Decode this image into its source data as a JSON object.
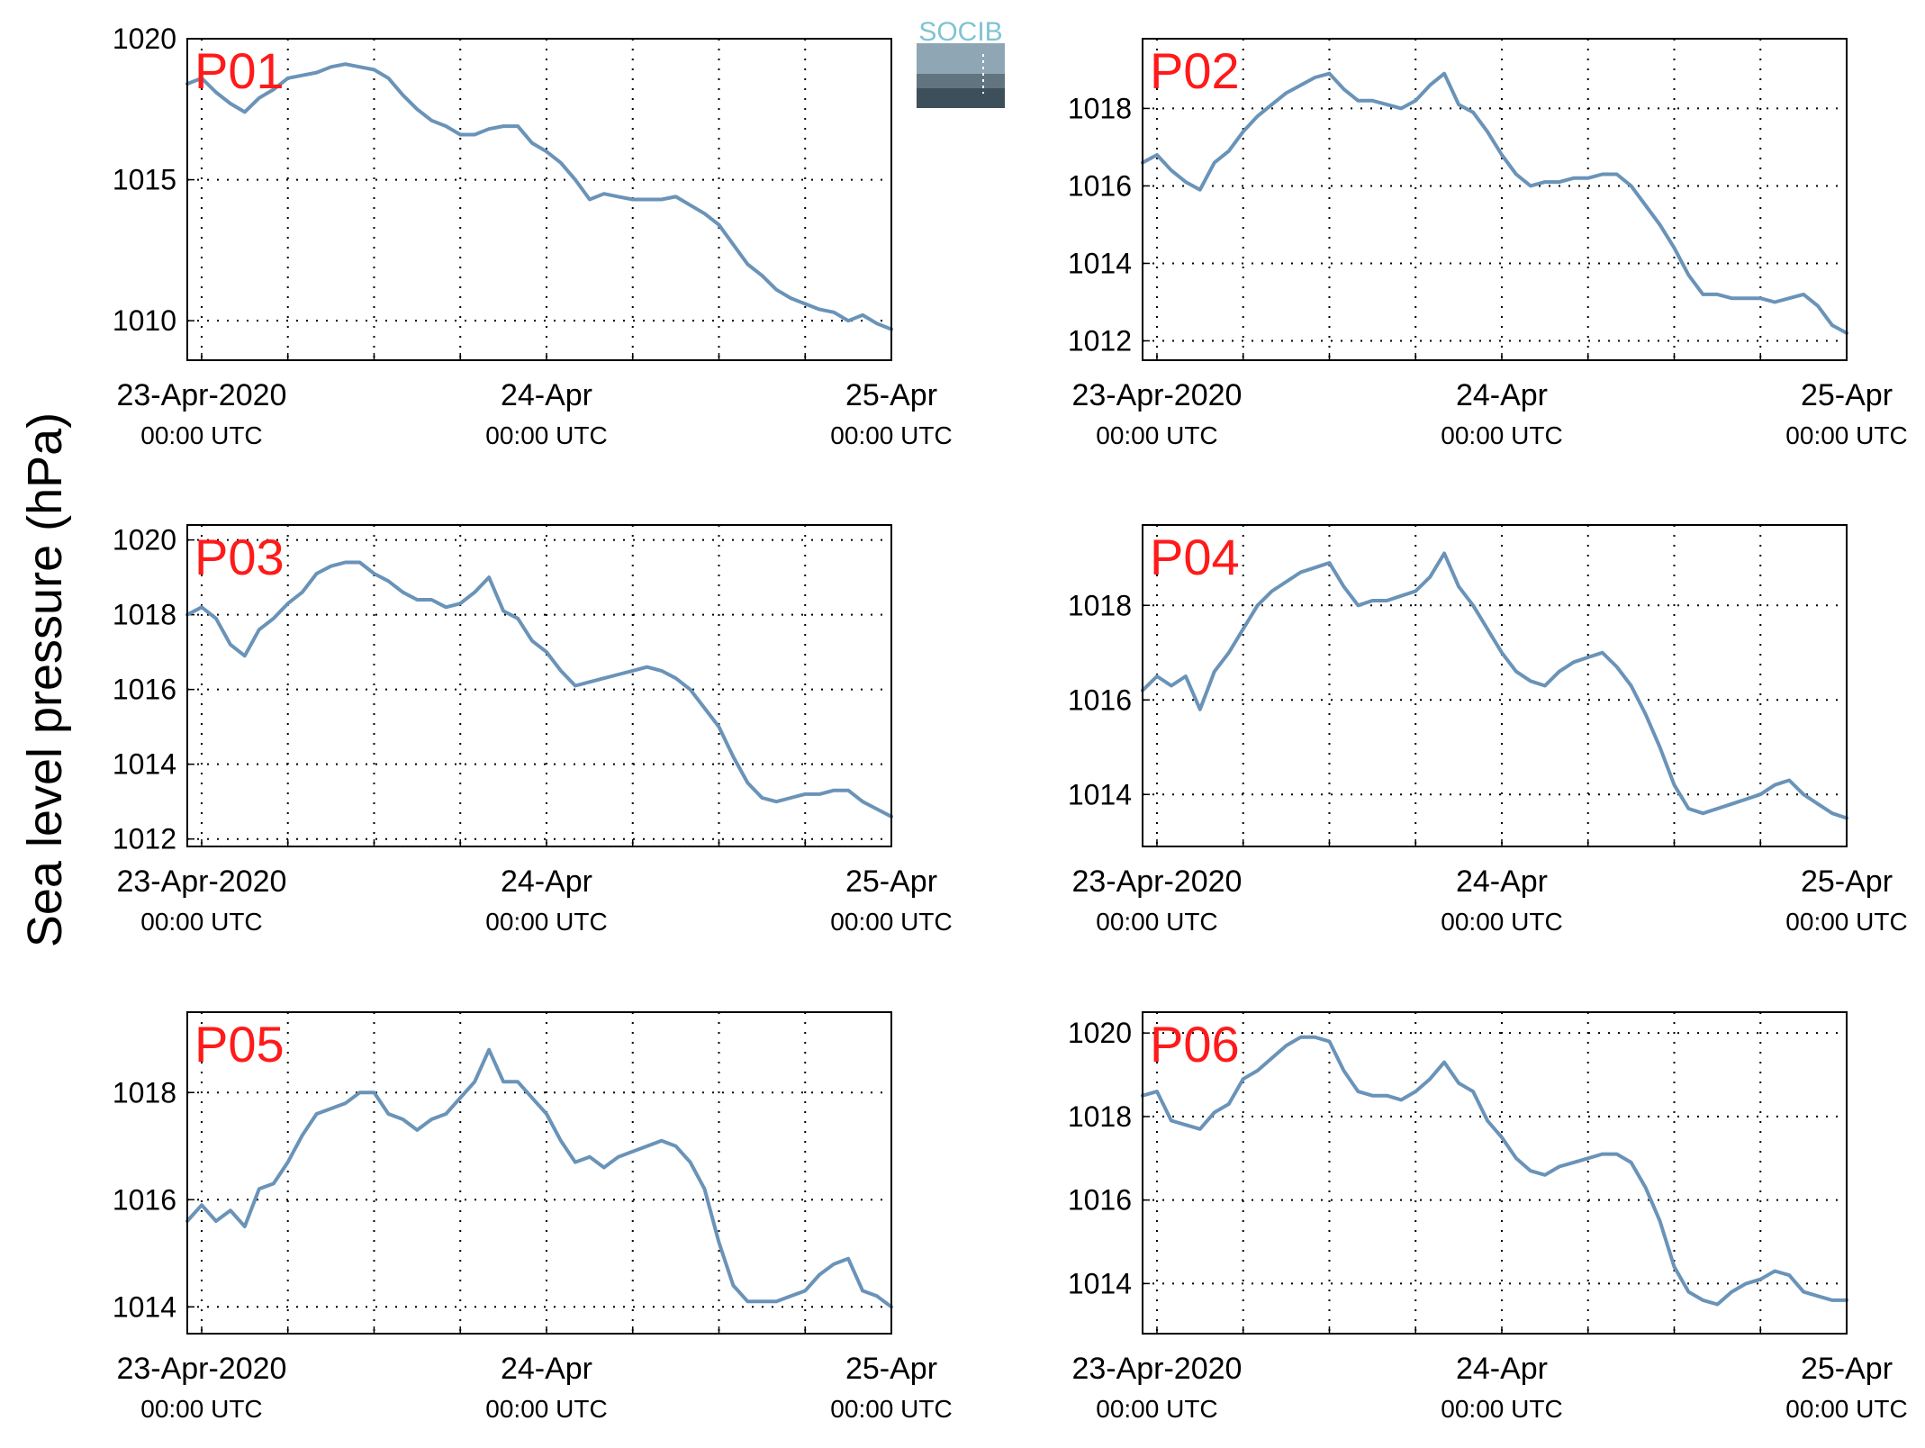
{
  "figure": {
    "ylabel": "Sea level pressure (hPa)",
    "logo_text": "SOCIB",
    "line_color": "#6a93b8",
    "panel_label_color": "#ff1a1a",
    "xticks": [
      {
        "x": 0,
        "line1": "23-Apr-2020",
        "line2": "00:00 UTC"
      },
      {
        "x": 24,
        "line1": "24-Apr",
        "line2": "00:00 UTC"
      },
      {
        "x": 48,
        "line1": "25-Apr",
        "line2": "00:00 UTC"
      }
    ]
  },
  "chart_data": [
    {
      "type": "line",
      "label": "P01",
      "xlim": [
        -1,
        48
      ],
      "ylim": [
        1008.6,
        1020
      ],
      "yticks": [
        1010,
        1015,
        1020
      ],
      "x": [
        -1,
        0,
        1,
        2,
        3,
        4,
        5,
        6,
        7,
        8,
        9,
        10,
        11,
        12,
        13,
        14,
        15,
        16,
        17,
        18,
        19,
        20,
        21,
        22,
        23,
        24,
        25,
        26,
        27,
        28,
        29,
        30,
        31,
        32,
        33,
        34,
        35,
        36,
        37,
        38,
        39,
        40,
        41,
        42,
        43,
        44,
        45,
        46,
        47,
        48
      ],
      "values": [
        1018.4,
        1018.6,
        1018.1,
        1017.7,
        1017.4,
        1017.9,
        1018.2,
        1018.6,
        1018.7,
        1018.8,
        1019.0,
        1019.1,
        1019.0,
        1018.9,
        1018.6,
        1018.0,
        1017.5,
        1017.1,
        1016.9,
        1016.6,
        1016.6,
        1016.8,
        1016.9,
        1016.9,
        1016.3,
        1016.0,
        1015.6,
        1015.0,
        1014.3,
        1014.5,
        1014.4,
        1014.3,
        1014.3,
        1014.3,
        1014.4,
        1014.1,
        1013.8,
        1013.4,
        1012.7,
        1012.0,
        1011.6,
        1011.1,
        1010.8,
        1010.6,
        1010.4,
        1010.3,
        1010.0,
        1010.2,
        1009.9,
        1009.7
      ]
    },
    {
      "type": "line",
      "label": "P02",
      "xlim": [
        -1,
        48
      ],
      "ylim": [
        1011.5,
        1019.8
      ],
      "yticks": [
        1012,
        1014,
        1016,
        1018
      ],
      "x": [
        -1,
        0,
        1,
        2,
        3,
        4,
        5,
        6,
        7,
        8,
        9,
        10,
        11,
        12,
        13,
        14,
        15,
        16,
        17,
        18,
        19,
        20,
        21,
        22,
        23,
        24,
        25,
        26,
        27,
        28,
        29,
        30,
        31,
        32,
        33,
        34,
        35,
        36,
        37,
        38,
        39,
        40,
        41,
        42,
        43,
        44,
        45,
        46,
        47,
        48
      ],
      "values": [
        1016.6,
        1016.8,
        1016.4,
        1016.1,
        1015.9,
        1016.6,
        1016.9,
        1017.4,
        1017.8,
        1018.1,
        1018.4,
        1018.6,
        1018.8,
        1018.9,
        1018.5,
        1018.2,
        1018.2,
        1018.1,
        1018.0,
        1018.2,
        1018.6,
        1018.9,
        1018.1,
        1017.9,
        1017.4,
        1016.8,
        1016.3,
        1016.0,
        1016.1,
        1016.1,
        1016.2,
        1016.2,
        1016.3,
        1016.3,
        1016.0,
        1015.5,
        1015.0,
        1014.4,
        1013.7,
        1013.2,
        1013.2,
        1013.1,
        1013.1,
        1013.1,
        1013.0,
        1013.1,
        1013.2,
        1012.9,
        1012.4,
        1012.2
      ]
    },
    {
      "type": "line",
      "label": "P03",
      "xlim": [
        -1,
        48
      ],
      "ylim": [
        1011.8,
        1020.4
      ],
      "yticks": [
        1012,
        1014,
        1016,
        1018,
        1020
      ],
      "x": [
        -1,
        0,
        1,
        2,
        3,
        4,
        5,
        6,
        7,
        8,
        9,
        10,
        11,
        12,
        13,
        14,
        15,
        16,
        17,
        18,
        19,
        20,
        21,
        22,
        23,
        24,
        25,
        26,
        27,
        28,
        29,
        30,
        31,
        32,
        33,
        34,
        35,
        36,
        37,
        38,
        39,
        40,
        41,
        42,
        43,
        44,
        45,
        46,
        47,
        48
      ],
      "values": [
        1018.0,
        1018.2,
        1017.9,
        1017.2,
        1016.9,
        1017.6,
        1017.9,
        1018.3,
        1018.6,
        1019.1,
        1019.3,
        1019.4,
        1019.4,
        1019.1,
        1018.9,
        1018.6,
        1018.4,
        1018.4,
        1018.2,
        1018.3,
        1018.6,
        1019.0,
        1018.1,
        1017.9,
        1017.3,
        1017.0,
        1016.5,
        1016.1,
        1016.2,
        1016.3,
        1016.4,
        1016.5,
        1016.6,
        1016.5,
        1016.3,
        1016.0,
        1015.5,
        1015.0,
        1014.2,
        1013.5,
        1013.1,
        1013.0,
        1013.1,
        1013.2,
        1013.2,
        1013.3,
        1013.3,
        1013.0,
        1012.8,
        1012.6
      ]
    },
    {
      "type": "line",
      "label": "P04",
      "xlim": [
        -1,
        48
      ],
      "ylim": [
        1012.9,
        1019.7
      ],
      "yticks": [
        1014,
        1016,
        1018
      ],
      "x": [
        -1,
        0,
        1,
        2,
        3,
        4,
        5,
        6,
        7,
        8,
        9,
        10,
        11,
        12,
        13,
        14,
        15,
        16,
        17,
        18,
        19,
        20,
        21,
        22,
        23,
        24,
        25,
        26,
        27,
        28,
        29,
        30,
        31,
        32,
        33,
        34,
        35,
        36,
        37,
        38,
        39,
        40,
        41,
        42,
        43,
        44,
        45,
        46,
        47,
        48
      ],
      "values": [
        1016.2,
        1016.5,
        1016.3,
        1016.5,
        1015.8,
        1016.6,
        1017.0,
        1017.5,
        1018.0,
        1018.3,
        1018.5,
        1018.7,
        1018.8,
        1018.9,
        1018.4,
        1018.0,
        1018.1,
        1018.1,
        1018.2,
        1018.3,
        1018.6,
        1019.1,
        1018.4,
        1018.0,
        1017.5,
        1017.0,
        1016.6,
        1016.4,
        1016.3,
        1016.6,
        1016.8,
        1016.9,
        1017.0,
        1016.7,
        1016.3,
        1015.7,
        1015.0,
        1014.2,
        1013.7,
        1013.6,
        1013.7,
        1013.8,
        1013.9,
        1014.0,
        1014.2,
        1014.3,
        1014.0,
        1013.8,
        1013.6,
        1013.5
      ]
    },
    {
      "type": "line",
      "label": "P05",
      "xlim": [
        -1,
        48
      ],
      "ylim": [
        1013.5,
        1019.5
      ],
      "yticks": [
        1014,
        1016,
        1018
      ],
      "x": [
        -1,
        0,
        1,
        2,
        3,
        4,
        5,
        6,
        7,
        8,
        9,
        10,
        11,
        12,
        13,
        14,
        15,
        16,
        17,
        18,
        19,
        20,
        21,
        22,
        23,
        24,
        25,
        26,
        27,
        28,
        29,
        30,
        31,
        32,
        33,
        34,
        35,
        36,
        37,
        38,
        39,
        40,
        41,
        42,
        43,
        44,
        45,
        46,
        47,
        48
      ],
      "values": [
        1015.6,
        1015.9,
        1015.6,
        1015.8,
        1015.5,
        1016.2,
        1016.3,
        1016.7,
        1017.2,
        1017.6,
        1017.7,
        1017.8,
        1018.0,
        1018.0,
        1017.6,
        1017.5,
        1017.3,
        1017.5,
        1017.6,
        1017.9,
        1018.2,
        1018.8,
        1018.2,
        1018.2,
        1017.9,
        1017.6,
        1017.1,
        1016.7,
        1016.8,
        1016.6,
        1016.8,
        1016.9,
        1017.0,
        1017.1,
        1017.0,
        1016.7,
        1016.2,
        1015.2,
        1014.4,
        1014.1,
        1014.1,
        1014.1,
        1014.2,
        1014.3,
        1014.6,
        1014.8,
        1014.9,
        1014.3,
        1014.2,
        1014.0
      ]
    },
    {
      "type": "line",
      "label": "P06",
      "xlim": [
        -1,
        48
      ],
      "ylim": [
        1012.8,
        1020.5
      ],
      "yticks": [
        1014,
        1016,
        1018,
        1020
      ],
      "x": [
        -1,
        0,
        1,
        2,
        3,
        4,
        5,
        6,
        7,
        8,
        9,
        10,
        11,
        12,
        13,
        14,
        15,
        16,
        17,
        18,
        19,
        20,
        21,
        22,
        23,
        24,
        25,
        26,
        27,
        28,
        29,
        30,
        31,
        32,
        33,
        34,
        35,
        36,
        37,
        38,
        39,
        40,
        41,
        42,
        43,
        44,
        45,
        46,
        47,
        48
      ],
      "values": [
        1018.5,
        1018.6,
        1017.9,
        1017.8,
        1017.7,
        1018.1,
        1018.3,
        1018.9,
        1019.1,
        1019.4,
        1019.7,
        1019.9,
        1019.9,
        1019.8,
        1019.1,
        1018.6,
        1018.5,
        1018.5,
        1018.4,
        1018.6,
        1018.9,
        1019.3,
        1018.8,
        1018.6,
        1017.9,
        1017.5,
        1017.0,
        1016.7,
        1016.6,
        1016.8,
        1016.9,
        1017.0,
        1017.1,
        1017.1,
        1016.9,
        1016.3,
        1015.5,
        1014.4,
        1013.8,
        1013.6,
        1013.5,
        1013.8,
        1014.0,
        1014.1,
        1014.3,
        1014.2,
        1013.8,
        1013.7,
        1013.6,
        1013.6
      ]
    }
  ]
}
